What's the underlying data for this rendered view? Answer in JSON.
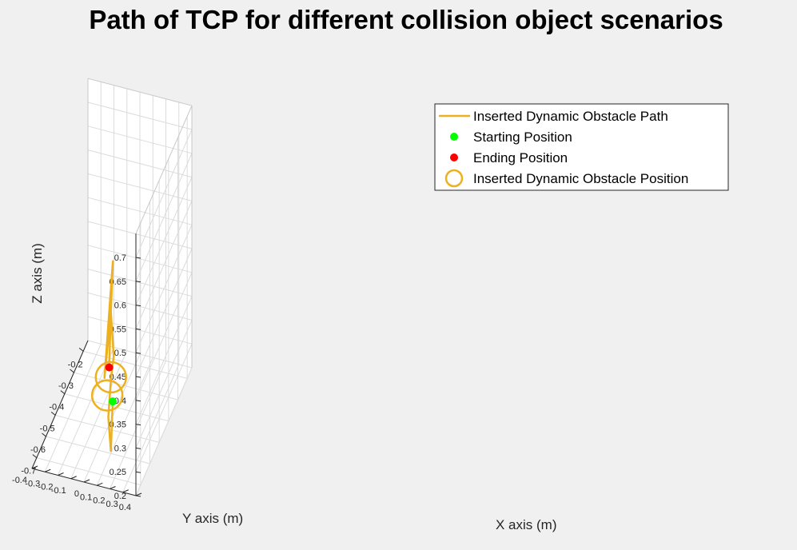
{
  "chart_data": {
    "type": "line3d",
    "title": "Path of TCP for different collision object scenarios",
    "xlabel": "X axis (m)",
    "ylabel": "Y axis (m)",
    "zlabel": "Z axis (m)",
    "x_ticks": [
      "-0.7",
      "-0.6",
      "-0.5",
      "-0.4",
      "-0.3",
      "-0.2"
    ],
    "y_ticks": [
      "-0.4",
      "-0.3",
      "-0.2",
      "-0.1",
      "0",
      "0.1",
      "0.2",
      "0.3",
      "0.4"
    ],
    "z_ticks": [
      "0.2",
      "0.25",
      "0.3",
      "0.35",
      "0.4",
      "0.45",
      "0.5",
      "0.55",
      "0.6",
      "0.65",
      "0.7"
    ],
    "grid": true,
    "legend_position": "top-right",
    "legend": [
      {
        "label": "Inserted Dynamic Obstacle Path",
        "marker": "line",
        "color": "#EDB120"
      },
      {
        "label": "Starting Position",
        "marker": "dot",
        "color": "#00FF00"
      },
      {
        "label": "Ending Position",
        "marker": "dot",
        "color": "#FF0000"
      },
      {
        "label": "Inserted Dynamic Obstacle Position",
        "marker": "circle",
        "color": "#EDB120"
      }
    ],
    "colors": {
      "path": "#EDB120",
      "start": "#00FF00",
      "end": "#FF0000",
      "obstacle": "#EDB120"
    },
    "start_point": {
      "x": -0.72,
      "y": 0.2,
      "z": 0.37
    },
    "end_point": {
      "x": -0.34,
      "y": -0.1,
      "z": 0.25
    },
    "obstacles": [
      {
        "x": -0.6,
        "y": 0.1,
        "z": 0.36
      },
      {
        "x": -0.5,
        "y": 0.0,
        "z": 0.27
      }
    ],
    "path": [
      {
        "x": -0.72,
        "y": 0.2,
        "z": 0.37
      },
      {
        "x": -0.7,
        "y": 0.18,
        "z": 0.32
      },
      {
        "x": -0.67,
        "y": 0.15,
        "z": 0.24
      },
      {
        "x": -0.67,
        "y": 0.13,
        "z": 0.31
      },
      {
        "x": -0.64,
        "y": 0.13,
        "z": 0.38
      },
      {
        "x": -0.57,
        "y": 0.1,
        "z": 0.39
      },
      {
        "x": -0.53,
        "y": 0.05,
        "z": 0.46
      },
      {
        "x": -0.53,
        "y": 0.0,
        "z": 0.32
      },
      {
        "x": -0.37,
        "y": -0.05,
        "z": 0.49
      },
      {
        "x": -0.35,
        "y": -0.08,
        "z": 0.37
      },
      {
        "x": -0.34,
        "y": -0.1,
        "z": 0.25
      }
    ]
  }
}
